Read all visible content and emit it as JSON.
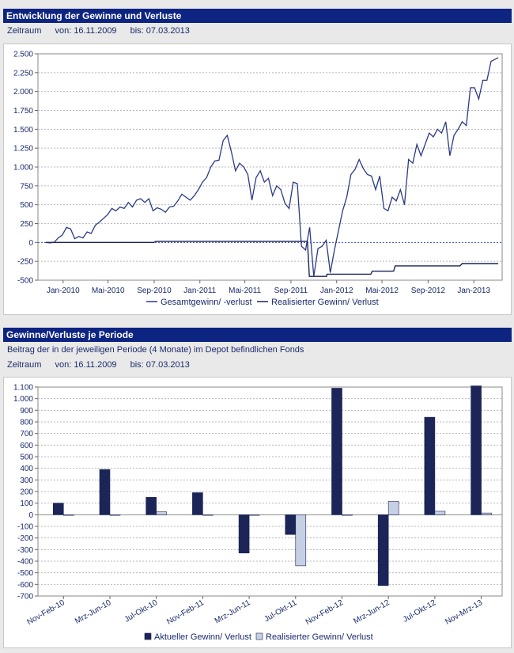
{
  "panel1": {
    "title": "Entwicklung der Gewinne und Verluste",
    "zeitraum_label": "Zeitraum",
    "von": "von: 16.11.2009",
    "bis": "bis: 07.03.2013"
  },
  "panel2": {
    "title": "Gewinne/Verluste je Periode",
    "subtitle": "Beitrag der in der jeweiligen Periode (4 Monate) im Depot befindlichen Fonds",
    "zeitraum_label": "Zeitraum",
    "von": "von: 16.11.2009",
    "bis": "bis: 07.03.2013"
  },
  "colors": {
    "header": "#0d2481",
    "series_dark": "#1b2557",
    "series_light": "#c5d0e4"
  },
  "chart_data": [
    {
      "type": "line",
      "ylim": [
        -500,
        2500
      ],
      "yticks": [
        2500,
        2250,
        2000,
        1750,
        1500,
        1250,
        1000,
        750,
        500,
        250,
        0,
        -250,
        -500
      ],
      "ytick_labels": [
        "2.500",
        "2.250",
        "2.000",
        "1.750",
        "1.500",
        "1.250",
        "1.000",
        "750",
        "500",
        "250",
        "0",
        "-250",
        "-500"
      ],
      "xlim": [
        "2009-11-16",
        "2013-03-07"
      ],
      "xticks": [
        "2010-01-01",
        "2010-05-01",
        "2010-09-01",
        "2011-01-01",
        "2011-05-01",
        "2011-09-01",
        "2012-01-01",
        "2012-05-01",
        "2012-09-01",
        "2013-01-01"
      ],
      "xtick_labels": [
        "Jan-2010",
        "Mai-2010",
        "Sep-2010",
        "Jan-2011",
        "Mai-2011",
        "Sep-2011",
        "Jan-2012",
        "Mai-2012",
        "Sep-2012",
        "Jan-2013"
      ],
      "grid": true,
      "legend": "bottom",
      "series": [
        {
          "name": "Gesamtgewinn/ -verlust",
          "points": [
            [
              "2009-11-16",
              0
            ],
            [
              "2009-11-27",
              -5
            ],
            [
              "2009-12-08",
              0
            ],
            [
              "2009-12-19",
              60
            ],
            [
              "2009-12-30",
              100
            ],
            [
              "2010-01-10",
              200
            ],
            [
              "2010-01-21",
              180
            ],
            [
              "2010-02-01",
              50
            ],
            [
              "2010-02-12",
              80
            ],
            [
              "2010-02-23",
              60
            ],
            [
              "2010-03-06",
              140
            ],
            [
              "2010-03-17",
              120
            ],
            [
              "2010-03-28",
              230
            ],
            [
              "2010-04-08",
              270
            ],
            [
              "2010-04-19",
              320
            ],
            [
              "2010-04-30",
              370
            ],
            [
              "2010-05-11",
              450
            ],
            [
              "2010-05-22",
              420
            ],
            [
              "2010-06-02",
              470
            ],
            [
              "2010-06-13",
              450
            ],
            [
              "2010-06-24",
              530
            ],
            [
              "2010-07-05",
              470
            ],
            [
              "2010-07-16",
              560
            ],
            [
              "2010-07-27",
              580
            ],
            [
              "2010-08-07",
              530
            ],
            [
              "2010-08-18",
              580
            ],
            [
              "2010-08-29",
              420
            ],
            [
              "2010-09-09",
              460
            ],
            [
              "2010-09-20",
              440
            ],
            [
              "2010-10-01",
              400
            ],
            [
              "2010-10-12",
              470
            ],
            [
              "2010-10-23",
              480
            ],
            [
              "2010-11-03",
              550
            ],
            [
              "2010-11-14",
              640
            ],
            [
              "2010-11-25",
              600
            ],
            [
              "2010-12-06",
              560
            ],
            [
              "2010-12-17",
              620
            ],
            [
              "2010-12-28",
              700
            ],
            [
              "2011-01-08",
              800
            ],
            [
              "2011-01-19",
              860
            ],
            [
              "2011-01-30",
              1000
            ],
            [
              "2011-02-10",
              1080
            ],
            [
              "2011-02-21",
              1090
            ],
            [
              "2011-03-04",
              1350
            ],
            [
              "2011-03-15",
              1420
            ],
            [
              "2011-03-26",
              1200
            ],
            [
              "2011-04-06",
              950
            ],
            [
              "2011-04-17",
              1050
            ],
            [
              "2011-04-28",
              1000
            ],
            [
              "2011-05-09",
              900
            ],
            [
              "2011-05-20",
              560
            ],
            [
              "2011-05-31",
              860
            ],
            [
              "2011-06-11",
              950
            ],
            [
              "2011-06-22",
              800
            ],
            [
              "2011-07-03",
              850
            ],
            [
              "2011-07-14",
              620
            ],
            [
              "2011-07-25",
              750
            ],
            [
              "2011-08-05",
              700
            ],
            [
              "2011-08-16",
              520
            ],
            [
              "2011-08-27",
              450
            ],
            [
              "2011-09-07",
              800
            ],
            [
              "2011-09-18",
              780
            ],
            [
              "2011-09-29",
              -50
            ],
            [
              "2011-10-10",
              -100
            ],
            [
              "2011-10-21",
              200
            ],
            [
              "2011-11-01",
              -450
            ],
            [
              "2011-11-12",
              -80
            ],
            [
              "2011-11-23",
              -50
            ],
            [
              "2011-12-04",
              30
            ],
            [
              "2011-12-15",
              -400
            ],
            [
              "2011-12-26",
              -100
            ],
            [
              "2012-01-06",
              160
            ],
            [
              "2012-01-17",
              420
            ],
            [
              "2012-01-28",
              600
            ],
            [
              "2012-02-08",
              900
            ],
            [
              "2012-02-19",
              970
            ],
            [
              "2012-03-01",
              1100
            ],
            [
              "2012-03-12",
              980
            ],
            [
              "2012-03-23",
              900
            ],
            [
              "2012-04-03",
              880
            ],
            [
              "2012-04-14",
              700
            ],
            [
              "2012-04-25",
              880
            ],
            [
              "2012-05-06",
              450
            ],
            [
              "2012-05-17",
              420
            ],
            [
              "2012-05-28",
              600
            ],
            [
              "2012-06-08",
              550
            ],
            [
              "2012-06-19",
              700
            ],
            [
              "2012-06-30",
              500
            ],
            [
              "2012-07-11",
              1100
            ],
            [
              "2012-07-22",
              1050
            ],
            [
              "2012-08-02",
              1300
            ],
            [
              "2012-08-13",
              1150
            ],
            [
              "2012-08-24",
              1300
            ],
            [
              "2012-09-04",
              1450
            ],
            [
              "2012-09-15",
              1400
            ],
            [
              "2012-09-26",
              1500
            ],
            [
              "2012-10-07",
              1450
            ],
            [
              "2012-10-18",
              1600
            ],
            [
              "2012-10-29",
              1150
            ],
            [
              "2012-11-09",
              1420
            ],
            [
              "2012-11-20",
              1500
            ],
            [
              "2012-12-01",
              1600
            ],
            [
              "2012-12-12",
              1550
            ],
            [
              "2012-12-23",
              2050
            ],
            [
              "2013-01-03",
              2050
            ],
            [
              "2013-01-14",
              1900
            ],
            [
              "2013-01-25",
              2150
            ],
            [
              "2013-02-05",
              2150
            ],
            [
              "2013-02-16",
              2400
            ],
            [
              "2013-03-07",
              2450
            ]
          ]
        },
        {
          "name": "Realisierter Gewinn/ Verlust",
          "points": [
            [
              "2009-11-16",
              0
            ],
            [
              "2010-08-31",
              0
            ],
            [
              "2010-09-05",
              15
            ],
            [
              "2011-10-15",
              15
            ],
            [
              "2011-10-20",
              -450
            ],
            [
              "2011-12-05",
              -450
            ],
            [
              "2011-12-06",
              -420
            ],
            [
              "2012-04-01",
              -420
            ],
            [
              "2012-04-05",
              -380
            ],
            [
              "2012-06-01",
              -380
            ],
            [
              "2012-06-05",
              -310
            ],
            [
              "2012-11-25",
              -310
            ],
            [
              "2012-12-01",
              -280
            ],
            [
              "2013-03-07",
              -280
            ]
          ]
        }
      ]
    },
    {
      "type": "bar",
      "ylim": [
        -700,
        1100
      ],
      "yticks": [
        1100,
        1000,
        900,
        800,
        700,
        600,
        500,
        400,
        300,
        200,
        100,
        0,
        -100,
        -200,
        -300,
        -400,
        -500,
        -600,
        -700
      ],
      "ytick_labels": [
        "1.100",
        "1.000",
        "900",
        "800",
        "700",
        "600",
        "500",
        "400",
        "300",
        "200",
        "100",
        "0",
        "-100",
        "-200",
        "-300",
        "-400",
        "-500",
        "-600",
        "-700"
      ],
      "categories": [
        "Nov-Feb-10",
        "Mrz-Jun-10",
        "Jul-Okt-10",
        "Nov-Feb-11",
        "Mrz-Jun-11",
        "Jul-Okt-11",
        "Nov-Feb-12",
        "Mrz-Jun-12",
        "Jul-Okt-12",
        "Nov-Mrz-13"
      ],
      "grid": true,
      "legend": "bottom",
      "series": [
        {
          "name": "Aktueller Gewinn/ Verlust",
          "values": [
            100,
            390,
            150,
            190,
            -330,
            -170,
            1090,
            -610,
            840,
            1110
          ]
        },
        {
          "name": "Realisierter Gewinn/ Verlust",
          "values": [
            0,
            0,
            25,
            0,
            0,
            -440,
            0,
            115,
            30,
            15
          ]
        }
      ]
    }
  ]
}
